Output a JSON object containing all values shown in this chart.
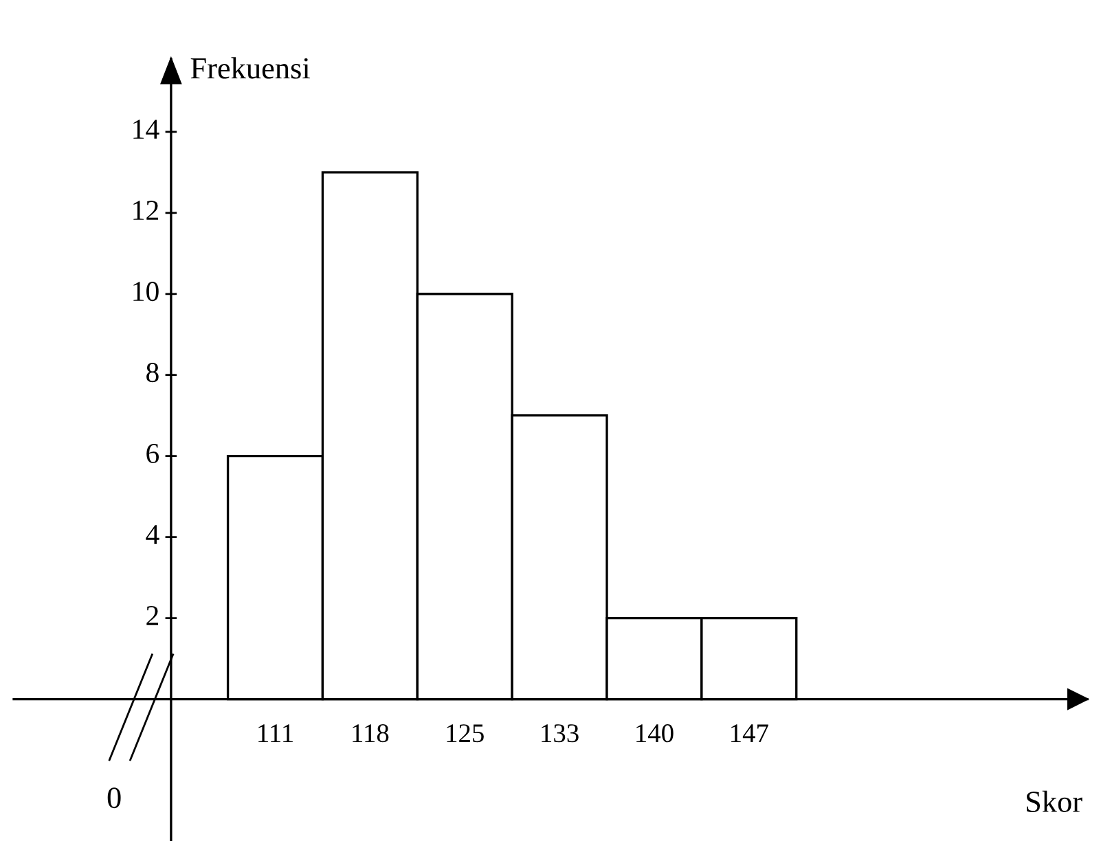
{
  "chart_data": {
    "type": "bar",
    "ylabel": "Frekuensi",
    "categories": [
      "111",
      "118",
      "125",
      "133",
      "140",
      "147"
    ],
    "values": [
      6,
      13,
      10,
      7,
      2,
      2
    ],
    "color": "#ffffff",
    "ylim": [
      -3.5,
      15.8
    ],
    "yticks": [
      2,
      4,
      6,
      8,
      10,
      12,
      14
    ],
    "annotations": [
      "0",
      "Skor"
    ]
  }
}
